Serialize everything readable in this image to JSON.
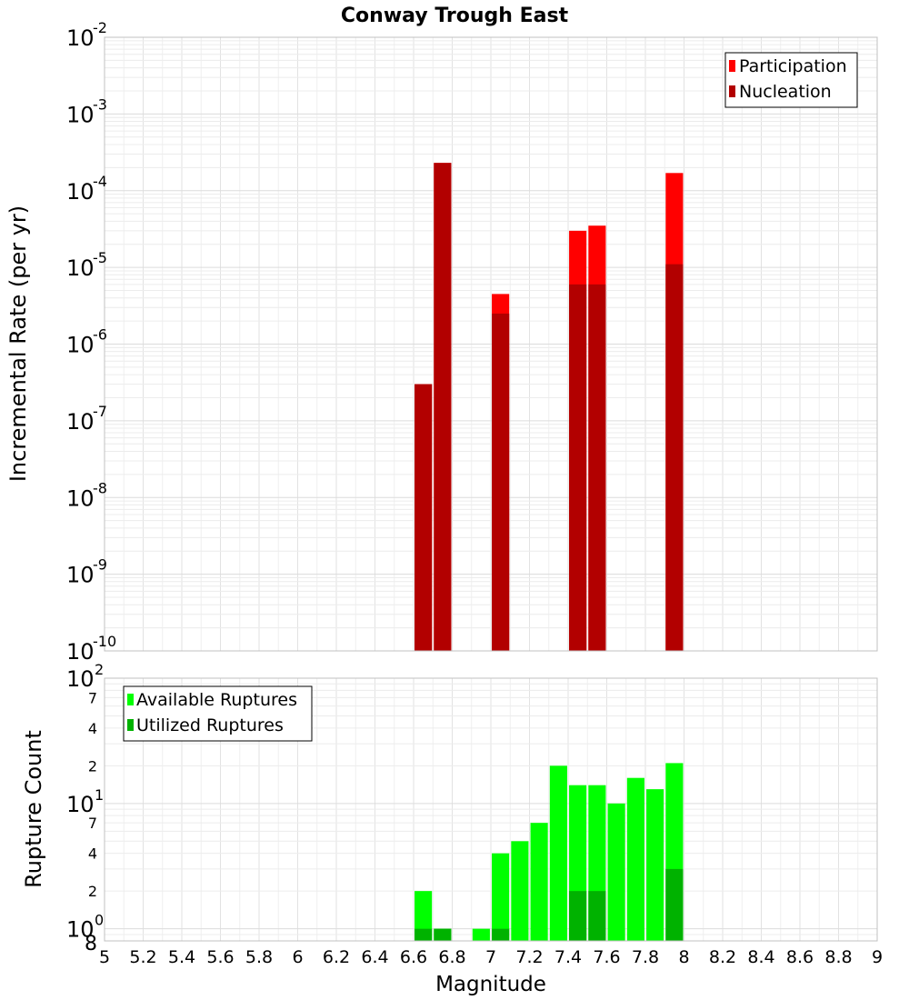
{
  "chart_data": [
    {
      "type": "bar",
      "title": "Conway Trough East",
      "xlabel": "",
      "ylabel": "Incremental Rate (per yr)",
      "yscale": "log",
      "xlim": [
        5,
        9
      ],
      "ylim": [
        1e-10,
        0.01
      ],
      "y_tick_bases": [
        "10",
        "10",
        "10",
        "10",
        "10",
        "10",
        "10",
        "10",
        "10"
      ],
      "y_tick_exponents": [
        "-10",
        "-9",
        "-8",
        "-7",
        "-6",
        "-5",
        "-4",
        "-3",
        "-2"
      ],
      "grid": true,
      "legend_position": "top-right",
      "bar_width": 0.09,
      "series": [
        {
          "name": "Participation",
          "color": "#ff0000",
          "points": [
            {
              "x": 6.65,
              "y": 3e-07
            },
            {
              "x": 6.75,
              "y": 0.00023
            },
            {
              "x": 7.05,
              "y": 4.5e-06
            },
            {
              "x": 7.45,
              "y": 3e-05
            },
            {
              "x": 7.55,
              "y": 3.5e-05
            },
            {
              "x": 7.95,
              "y": 0.00017
            }
          ]
        },
        {
          "name": "Nucleation",
          "color": "#b20000",
          "points": [
            {
              "x": 6.65,
              "y": 3e-07
            },
            {
              "x": 6.75,
              "y": 0.00023
            },
            {
              "x": 7.05,
              "y": 2.5e-06
            },
            {
              "x": 7.45,
              "y": 6e-06
            },
            {
              "x": 7.55,
              "y": 6e-06
            },
            {
              "x": 7.95,
              "y": 1.1e-05
            }
          ]
        }
      ]
    },
    {
      "type": "bar",
      "title": "",
      "xlabel": "Magnitude",
      "ylabel": "Rupture Count",
      "yscale": "log",
      "xlim": [
        5,
        9
      ],
      "ylim": [
        0.8,
        100
      ],
      "x_ticks": [
        "5",
        "5.2",
        "5.4",
        "5.6",
        "5.8",
        "6",
        "6.2",
        "6.4",
        "6.6",
        "6.8",
        "7",
        "7.2",
        "7.4",
        "7.6",
        "7.8",
        "8",
        "8.2",
        "8.4",
        "8.6",
        "8.8",
        "9"
      ],
      "y_major_bases": [
        "10",
        "10",
        "10"
      ],
      "y_major_exponents": [
        "0",
        "1",
        "2"
      ],
      "y_minor_labels": [
        "8",
        "2",
        "4",
        "7",
        "2",
        "4",
        "7"
      ],
      "grid": true,
      "legend_position": "top-left",
      "bar_width": 0.09,
      "series": [
        {
          "name": "Available Ruptures",
          "color": "#00ff00",
          "points": [
            {
              "x": 6.65,
              "y": 2
            },
            {
              "x": 6.75,
              "y": 1
            },
            {
              "x": 6.95,
              "y": 1
            },
            {
              "x": 7.05,
              "y": 4
            },
            {
              "x": 7.15,
              "y": 5
            },
            {
              "x": 7.25,
              "y": 7
            },
            {
              "x": 7.35,
              "y": 20
            },
            {
              "x": 7.45,
              "y": 14
            },
            {
              "x": 7.55,
              "y": 14
            },
            {
              "x": 7.65,
              "y": 10
            },
            {
              "x": 7.75,
              "y": 16
            },
            {
              "x": 7.85,
              "y": 13
            },
            {
              "x": 7.95,
              "y": 21
            }
          ]
        },
        {
          "name": "Utilized Ruptures",
          "color": "#00b200",
          "points": [
            {
              "x": 6.65,
              "y": 1
            },
            {
              "x": 6.75,
              "y": 1
            },
            {
              "x": 7.05,
              "y": 1
            },
            {
              "x": 7.45,
              "y": 2
            },
            {
              "x": 7.55,
              "y": 2
            },
            {
              "x": 7.95,
              "y": 3
            }
          ]
        }
      ]
    }
  ]
}
